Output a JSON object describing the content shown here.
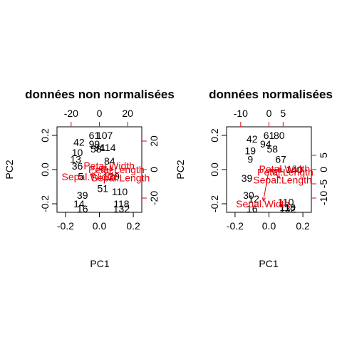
{
  "chart_data": [
    {
      "type": "scatter",
      "title": "données non normalisées",
      "xlabel": "PC1",
      "ylabel": "PC2",
      "xlim": [
        -0.25,
        0.25
      ],
      "ylim": [
        -0.25,
        0.25
      ],
      "xticks": [
        -0.2,
        0.0,
        0.2
      ],
      "yticks": [
        -0.2,
        0.0,
        0.2
      ],
      "top_ticks": [
        -20,
        0,
        20
      ],
      "right_ticks": [
        -20,
        0,
        20
      ],
      "secondary_lim": [
        -30,
        30
      ],
      "observations": [
        {
          "label": "42",
          "x": -0.12,
          "y": 0.16
        },
        {
          "label": "61",
          "x": -0.03,
          "y": 0.2
        },
        {
          "label": "107",
          "x": 0.03,
          "y": 0.2
        },
        {
          "label": "99",
          "x": -0.03,
          "y": 0.15
        },
        {
          "label": "58",
          "x": -0.02,
          "y": 0.12
        },
        {
          "label": "94",
          "x": 0.0,
          "y": 0.13
        },
        {
          "label": "114",
          "x": 0.05,
          "y": 0.13
        },
        {
          "label": "10",
          "x": -0.13,
          "y": 0.1
        },
        {
          "label": "13",
          "x": -0.14,
          "y": 0.06
        },
        {
          "label": "36",
          "x": -0.13,
          "y": 0.02
        },
        {
          "label": "5",
          "x": -0.11,
          "y": -0.04
        },
        {
          "label": "39",
          "x": -0.1,
          "y": -0.15
        },
        {
          "label": "14",
          "x": -0.12,
          "y": -0.2
        },
        {
          "label": "16",
          "x": -0.1,
          "y": -0.23
        },
        {
          "label": "51",
          "x": 0.02,
          "y": -0.11
        },
        {
          "label": "110",
          "x": 0.12,
          "y": -0.13
        },
        {
          "label": "118",
          "x": 0.13,
          "y": -0.2
        },
        {
          "label": "132",
          "x": 0.13,
          "y": -0.23
        },
        {
          "label": "84",
          "x": 0.06,
          "y": 0.05
        },
        {
          "label": "120",
          "x": 0.07,
          "y": -0.04
        }
      ],
      "loadings": [
        {
          "label": "Petal.Width",
          "x": 5,
          "y": 2
        },
        {
          "label": "Petal.Length",
          "x": 10,
          "y": 0
        },
        {
          "label": "Sepal.Length",
          "x": 13,
          "y": -5
        },
        {
          "label": "Sepal.Width",
          "x": -6,
          "y": -4
        }
      ]
    },
    {
      "type": "scatter",
      "title": "données normalisées",
      "xlabel": "PC1",
      "ylabel": "PC2",
      "xlim": [
        -0.25,
        0.25
      ],
      "ylim": [
        -0.25,
        0.25
      ],
      "xticks": [
        -0.2,
        0.0,
        0.2
      ],
      "yticks": [
        -0.2,
        0.0,
        0.2
      ],
      "top_ticks": [
        -10,
        0,
        5
      ],
      "right_ticks": [
        -10,
        -5,
        0,
        5
      ],
      "secondary_lim": [
        -15,
        15
      ],
      "observations": [
        {
          "label": "42",
          "x": -0.1,
          "y": 0.18
        },
        {
          "label": "61",
          "x": 0.0,
          "y": 0.2
        },
        {
          "label": "94",
          "x": -0.02,
          "y": 0.15
        },
        {
          "label": "80",
          "x": 0.06,
          "y": 0.2
        },
        {
          "label": "58",
          "x": 0.02,
          "y": 0.12
        },
        {
          "label": "67",
          "x": 0.07,
          "y": 0.06
        },
        {
          "label": "9",
          "x": -0.11,
          "y": 0.06
        },
        {
          "label": "39",
          "x": -0.13,
          "y": -0.05
        },
        {
          "label": "30",
          "x": -0.12,
          "y": -0.15
        },
        {
          "label": "12",
          "x": -0.09,
          "y": -0.17
        },
        {
          "label": "16",
          "x": -0.1,
          "y": -0.23
        },
        {
          "label": "110",
          "x": 0.1,
          "y": -0.19
        },
        {
          "label": "118",
          "x": 0.11,
          "y": -0.22
        },
        {
          "label": "132",
          "x": 0.11,
          "y": -0.23
        },
        {
          "label": "140",
          "x": 0.15,
          "y": 0.0
        },
        {
          "label": "19",
          "x": -0.11,
          "y": 0.11
        }
      ],
      "loadings": [
        {
          "label": "Petal.Width",
          "x": 4.5,
          "y": 0.2
        },
        {
          "label": "Petal.Length",
          "x": 4.8,
          "y": -0.7
        },
        {
          "label": "Sepal.Length",
          "x": 4.0,
          "y": -3.0
        },
        {
          "label": "Sepal.Width",
          "x": -2.0,
          "y": -11.0
        }
      ]
    }
  ]
}
